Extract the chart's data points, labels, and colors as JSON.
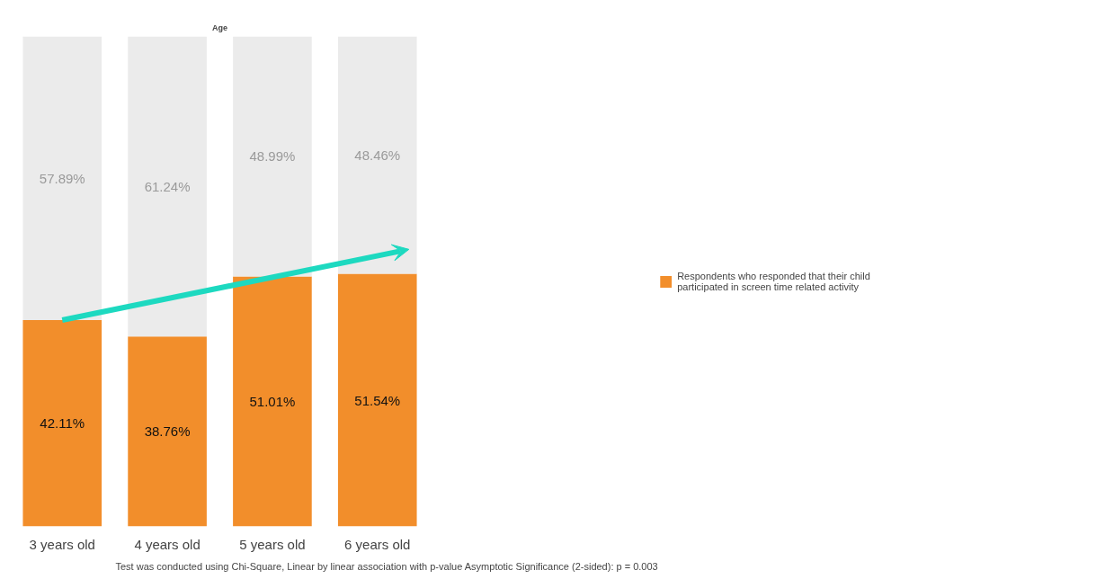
{
  "chart_data": {
    "type": "bar",
    "stacked": true,
    "title": "Age",
    "categories": [
      "3 years old",
      "4 years old",
      "5 years old",
      "6 years old"
    ],
    "series": [
      {
        "name": "Respondents who responded that their child participated in screen time related activity",
        "color": "#f28e2b",
        "values": [
          42.11,
          38.76,
          51.01,
          51.54
        ],
        "value_labels": [
          "42.11%",
          "38.76%",
          "51.01%",
          "51.54%"
        ]
      },
      {
        "color": "#ebebeb",
        "values": [
          57.89,
          61.24,
          48.99,
          48.46
        ],
        "value_labels": [
          "57.89%",
          "61.24%",
          "48.99%",
          "48.46%"
        ]
      }
    ],
    "tick_labels": "x",
    "legend": "right",
    "annotations": [
      "Test was conducted using Chi-Square, Linear by linear association with p-value Asymptotic Significance (2-sided): p = 0.003"
    ]
  }
}
